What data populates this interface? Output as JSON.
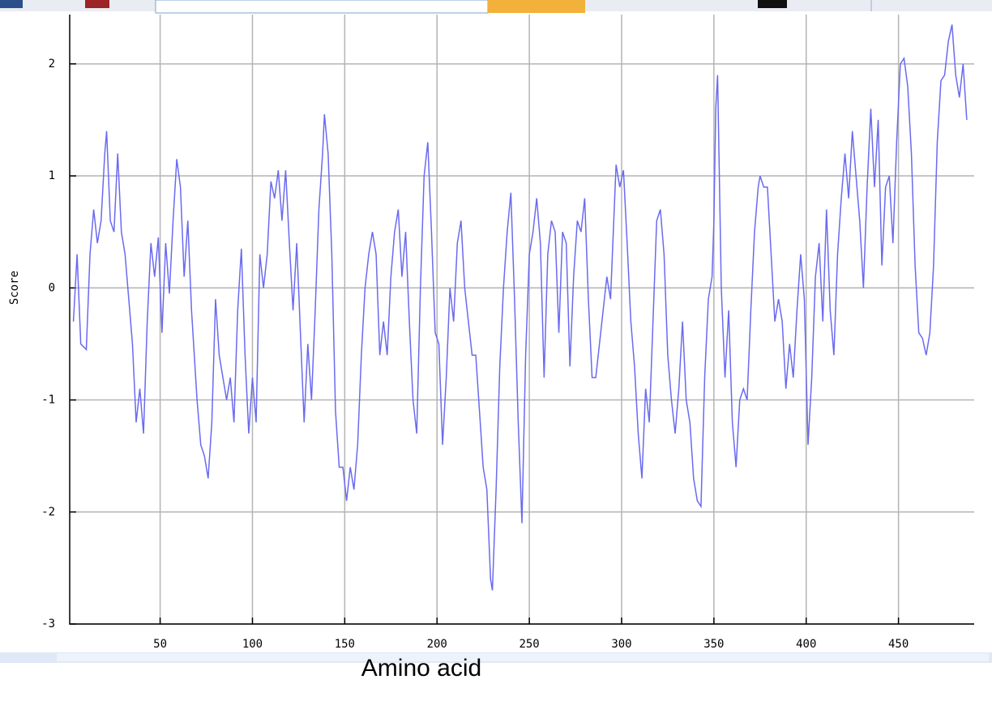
{
  "chart_data": {
    "type": "line",
    "xlabel": "Amino acid",
    "ylabel": "Score",
    "x": [
      3,
      5,
      7,
      10,
      12,
      14,
      16,
      18,
      20,
      21,
      23,
      25,
      27,
      29,
      31,
      33,
      35,
      37,
      39,
      41,
      43,
      45,
      47,
      49,
      51,
      53,
      55,
      57,
      59,
      61,
      63,
      65,
      67,
      70,
      72,
      74,
      76,
      78,
      80,
      82,
      84,
      86,
      88,
      90,
      92,
      94,
      96,
      98,
      100,
      102,
      104,
      106,
      108,
      110,
      112,
      114,
      116,
      118,
      120,
      122,
      124,
      126,
      128,
      130,
      132,
      134,
      136,
      138,
      139,
      141,
      143,
      145,
      147,
      149,
      151,
      153,
      155,
      157,
      159,
      161,
      163,
      165,
      167,
      169,
      171,
      173,
      175,
      177,
      179,
      181,
      183,
      185,
      187,
      189,
      191,
      193,
      195,
      197,
      199,
      201,
      203,
      205,
      207,
      209,
      211,
      213,
      215,
      217,
      219,
      221,
      223,
      225,
      227,
      229,
      230,
      232,
      234,
      236,
      238,
      240,
      242,
      244,
      246,
      248,
      250,
      252,
      254,
      256,
      258,
      260,
      262,
      264,
      266,
      268,
      270,
      272,
      274,
      276,
      278,
      280,
      282,
      284,
      286,
      288,
      290,
      292,
      294,
      296,
      297,
      299,
      301,
      303,
      305,
      307,
      309,
      311,
      313,
      315,
      317,
      319,
      321,
      323,
      325,
      327,
      329,
      331,
      333,
      335,
      337,
      339,
      341,
      343,
      345,
      347,
      349,
      350,
      351,
      352,
      354,
      356,
      358,
      360,
      362,
      364,
      366,
      368,
      370,
      372,
      374,
      375,
      377,
      379,
      381,
      383,
      385,
      387,
      389,
      391,
      393,
      395,
      397,
      399,
      401,
      403,
      405,
      407,
      409,
      411,
      413,
      415,
      417,
      419,
      421,
      423,
      425,
      427,
      429,
      431,
      433,
      435,
      437,
      439,
      441,
      443,
      445,
      447,
      449,
      451,
      453,
      455,
      457,
      459,
      461,
      463,
      465,
      467,
      469,
      471,
      473,
      475,
      477,
      479,
      481,
      483,
      485,
      487
    ],
    "values": [
      -0.3,
      0.3,
      -0.5,
      -0.55,
      0.3,
      0.7,
      0.4,
      0.6,
      1.2,
      1.4,
      0.6,
      0.5,
      1.2,
      0.5,
      0.3,
      -0.1,
      -0.5,
      -1.2,
      -0.9,
      -1.3,
      -0.3,
      0.4,
      0.1,
      0.45,
      -0.4,
      0.4,
      -0.05,
      0.6,
      1.15,
      0.9,
      0.1,
      0.6,
      -0.2,
      -1.0,
      -1.4,
      -1.5,
      -1.7,
      -1.2,
      -0.1,
      -0.6,
      -0.8,
      -1.0,
      -0.8,
      -1.2,
      -0.2,
      0.35,
      -0.6,
      -1.3,
      -0.8,
      -1.2,
      0.3,
      0.0,
      0.3,
      0.95,
      0.8,
      1.05,
      0.6,
      1.05,
      0.4,
      -0.2,
      0.4,
      -0.4,
      -1.2,
      -0.5,
      -1.0,
      -0.2,
      0.7,
      1.2,
      1.55,
      1.2,
      0.3,
      -1.1,
      -1.6,
      -1.6,
      -1.9,
      -1.6,
      -1.8,
      -1.4,
      -0.6,
      0.0,
      0.3,
      0.5,
      0.3,
      -0.6,
      -0.3,
      -0.6,
      0.1,
      0.5,
      0.7,
      0.1,
      0.5,
      -0.3,
      -1.0,
      -1.3,
      0.0,
      1.0,
      1.3,
      0.5,
      -0.4,
      -0.5,
      -1.4,
      -0.8,
      0.0,
      -0.3,
      0.4,
      0.6,
      0.0,
      -0.3,
      -0.6,
      -0.6,
      -1.1,
      -1.6,
      -1.8,
      -2.6,
      -2.7,
      -1.8,
      -0.7,
      0.0,
      0.5,
      0.85,
      -0.1,
      -1.2,
      -2.1,
      -0.6,
      0.3,
      0.5,
      0.8,
      0.4,
      -0.8,
      0.3,
      0.6,
      0.5,
      -0.4,
      0.5,
      0.4,
      -0.7,
      0.1,
      0.6,
      0.5,
      0.8,
      -0.1,
      -0.8,
      -0.8,
      -0.5,
      -0.2,
      0.1,
      -0.1,
      0.7,
      1.1,
      0.9,
      1.05,
      0.4,
      -0.3,
      -0.7,
      -1.3,
      -1.7,
      -0.9,
      -1.2,
      -0.3,
      0.6,
      0.7,
      0.3,
      -0.6,
      -1.0,
      -1.3,
      -0.9,
      -0.3,
      -1.0,
      -1.2,
      -1.7,
      -1.9,
      -1.95,
      -0.8,
      -0.1,
      0.1,
      0.6,
      1.6,
      1.9,
      0.0,
      -0.8,
      -0.2,
      -1.2,
      -1.6,
      -1.0,
      -0.9,
      -1.0,
      -0.2,
      0.5,
      0.9,
      1.0,
      0.9,
      0.9,
      0.3,
      -0.3,
      -0.1,
      -0.3,
      -0.9,
      -0.5,
      -0.8,
      -0.2,
      0.3,
      -0.1,
      -1.4,
      -0.8,
      0.1,
      0.4,
      -0.3,
      0.7,
      -0.2,
      -0.6,
      0.3,
      0.8,
      1.2,
      0.8,
      1.4,
      1.0,
      0.6,
      0.0,
      0.9,
      1.6,
      0.9,
      1.5,
      0.2,
      0.9,
      1.0,
      0.4,
      1.3,
      2.0,
      2.05,
      1.8,
      1.2,
      0.2,
      -0.4,
      -0.45,
      -0.6,
      -0.4,
      0.2,
      1.3,
      1.85,
      1.9,
      2.2,
      2.35,
      1.9,
      1.7,
      2.0,
      1.5
    ],
    "color": "#6a6af0",
    "xlim": [
      1,
      491
    ],
    "xticks": [
      50,
      100,
      150,
      200,
      250,
      300,
      350,
      400,
      450
    ],
    "ylim": [
      -3,
      2.44
    ],
    "yticks": [
      -3,
      -2,
      -1,
      0,
      1,
      2
    ],
    "grid": true
  }
}
